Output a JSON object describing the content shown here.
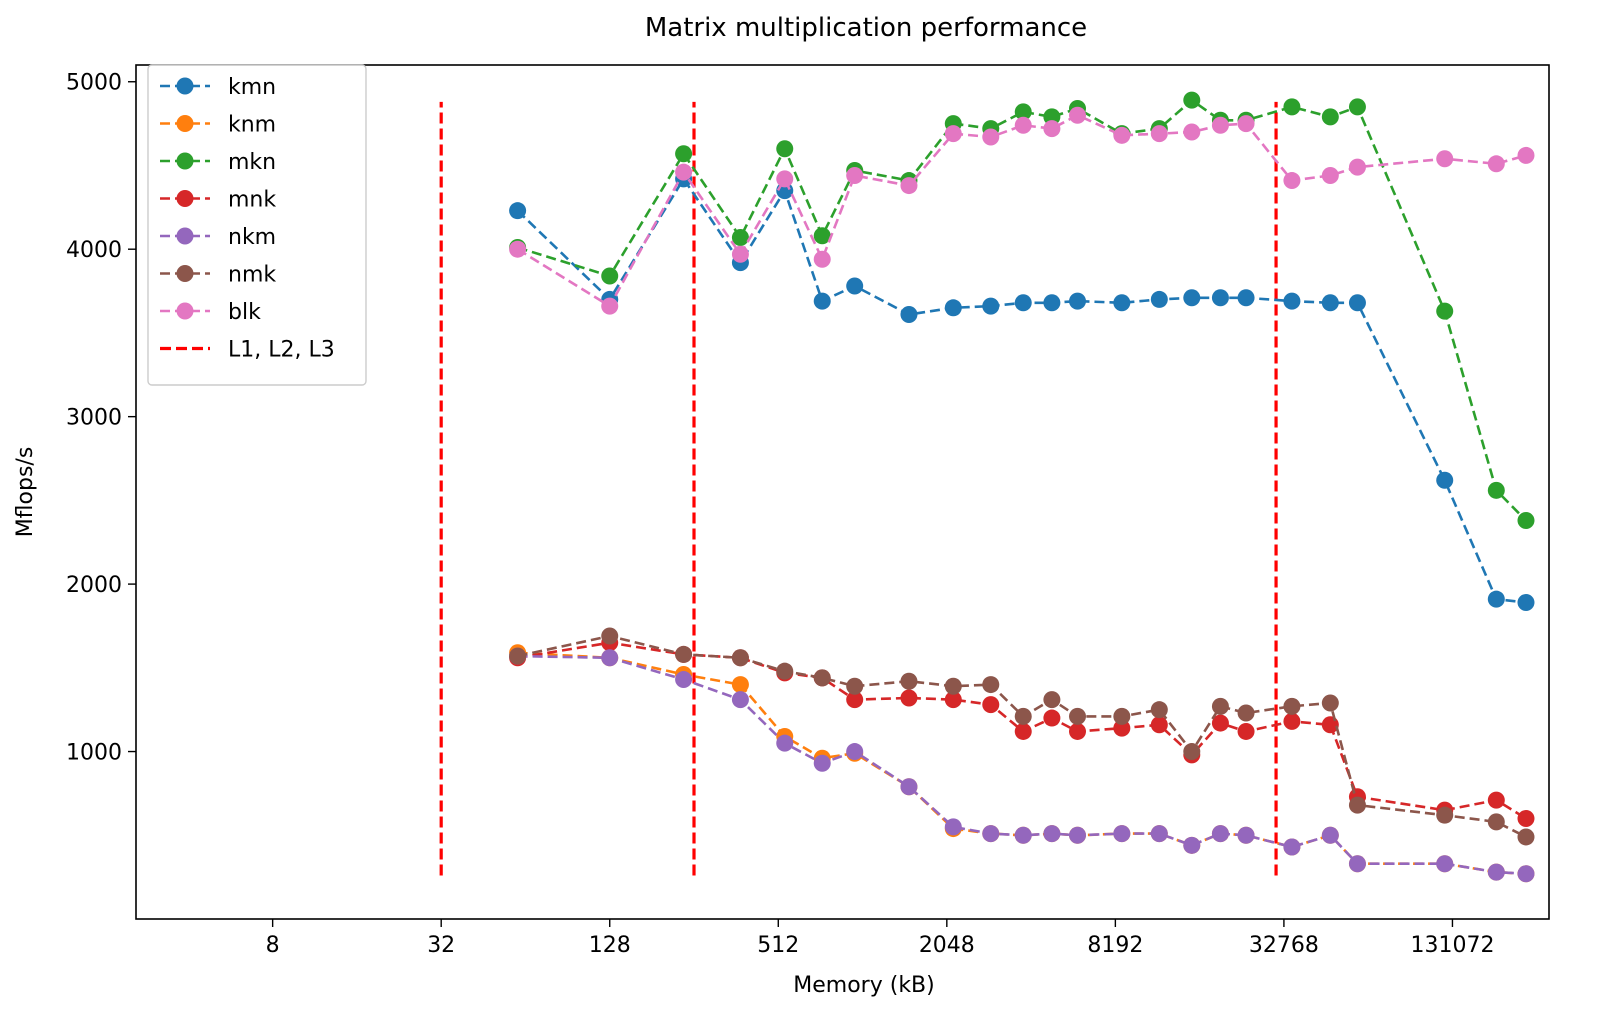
{
  "chart_data": {
    "type": "line",
    "title": "Matrix multiplication performance",
    "xlabel": "Memory (kB)",
    "ylabel": "Mflops/s",
    "x_scale": "log2",
    "xlim": [
      2.6,
      290000
    ],
    "ylim": [
      0,
      5100
    ],
    "x_ticks": [
      8,
      32,
      128,
      512,
      2048,
      8192,
      32768,
      131072
    ],
    "x_tick_labels": [
      "8",
      "32",
      "128",
      "512",
      "2048",
      "8192",
      "32768",
      "131072"
    ],
    "y_ticks": [
      1000,
      2000,
      3000,
      4000,
      5000
    ],
    "y_tick_labels": [
      "1000",
      "2000",
      "3000",
      "4000",
      "5000"
    ],
    "grid": false,
    "legend_position": "upper left",
    "cache_lines": {
      "name": "L1, L2, L3",
      "color": "#ff0000",
      "x": [
        32,
        256,
        30720
      ],
      "y_range": [
        260,
        4880
      ]
    },
    "x": [
      60,
      128,
      235,
      375,
      540,
      735,
      960,
      1500,
      2160,
      2940,
      3840,
      4860,
      6000,
      8640,
      11760,
      15360,
      19440,
      24000,
      35000,
      48000,
      60000,
      123000,
      188000,
      240000
    ],
    "series": [
      {
        "name": "kmn",
        "color": "#1f77b4",
        "values": [
          4230,
          3700,
          4420,
          3920,
          4350,
          3690,
          3780,
          3610,
          3650,
          3660,
          3680,
          3680,
          3690,
          3680,
          3700,
          3710,
          3710,
          3710,
          3690,
          3680,
          3680,
          2620,
          1910,
          1890
        ]
      },
      {
        "name": "knm",
        "color": "#ff7f0e",
        "values": [
          1590,
          1560,
          1460,
          1400,
          1090,
          960,
          990,
          790,
          540,
          510,
          500,
          510,
          500,
          510,
          510,
          440,
          510,
          500,
          430,
          500,
          330,
          330,
          280,
          270
        ]
      },
      {
        "name": "mkn",
        "color": "#2ca02c",
        "values": [
          4010,
          3840,
          4570,
          4070,
          4600,
          4080,
          4470,
          4410,
          4750,
          4720,
          4820,
          4790,
          4840,
          4690,
          4720,
          4890,
          4770,
          4770,
          4850,
          4790,
          4850,
          3630,
          2560,
          2380
        ]
      },
      {
        "name": "mnk",
        "color": "#d62728",
        "values": [
          1560,
          1650,
          1580,
          1560,
          1470,
          1440,
          1310,
          1320,
          1310,
          1280,
          1120,
          1200,
          1120,
          1140,
          1160,
          980,
          1170,
          1120,
          1180,
          1160,
          730,
          650,
          710,
          600
        ]
      },
      {
        "name": "nkm",
        "color": "#9467bd",
        "values": [
          1570,
          1560,
          1430,
          1310,
          1050,
          930,
          1000,
          790,
          550,
          510,
          500,
          510,
          500,
          510,
          510,
          440,
          510,
          500,
          430,
          500,
          330,
          330,
          280,
          270
        ]
      },
      {
        "name": "nmk",
        "color": "#8c564b",
        "values": [
          1570,
          1690,
          1580,
          1560,
          1480,
          1440,
          1390,
          1420,
          1390,
          1400,
          1210,
          1310,
          1210,
          1210,
          1250,
          1000,
          1270,
          1230,
          1270,
          1290,
          680,
          620,
          580,
          490
        ]
      },
      {
        "name": "blk",
        "color": "#e377c2",
        "values": [
          4000,
          3660,
          4460,
          3970,
          4420,
          3940,
          4440,
          4380,
          4690,
          4670,
          4740,
          4720,
          4800,
          4680,
          4690,
          4700,
          4740,
          4750,
          4410,
          4440,
          4490,
          4540,
          4510,
          4560
        ]
      }
    ]
  }
}
